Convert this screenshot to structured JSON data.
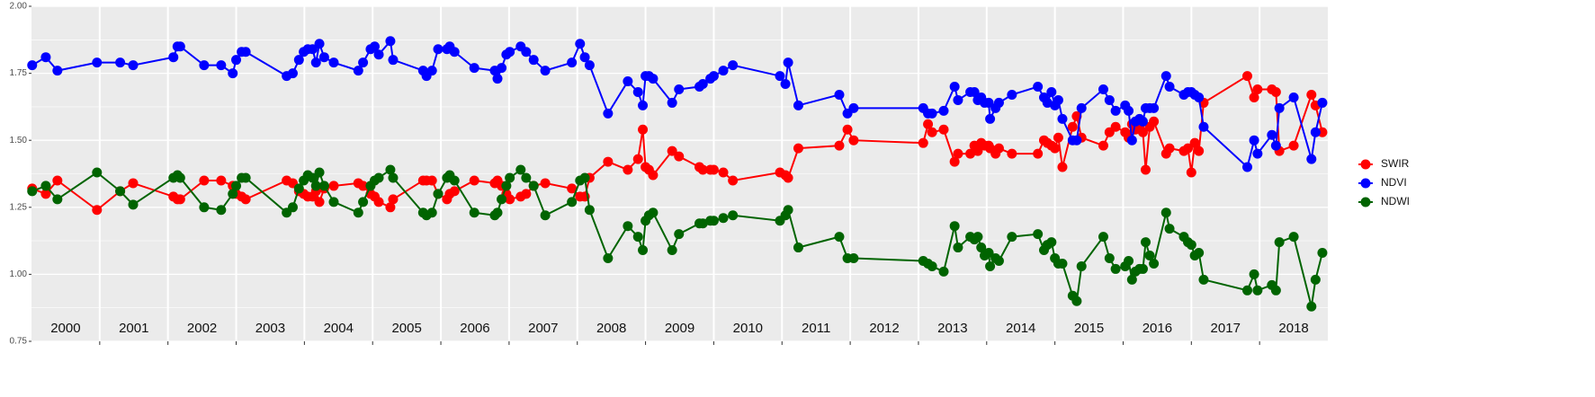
{
  "chart_data": {
    "type": "line",
    "x": [
      2000.01,
      2000.21,
      2000.38,
      2000.96,
      2001.3,
      2001.49,
      2002.08,
      2002.14,
      2002.18,
      2002.53,
      2002.78,
      2002.95,
      2003.0,
      2003.08,
      2003.14,
      2003.74,
      2003.83,
      2003.92,
      2003.99,
      2004.05,
      2004.12,
      2004.17,
      2004.22,
      2004.29,
      2004.43,
      2004.79,
      2004.86,
      2004.97,
      2005.03,
      2005.09,
      2005.26,
      2005.3,
      2005.74,
      2005.79,
      2005.87,
      2005.96,
      2006.09,
      2006.13,
      2006.2,
      2006.49,
      2006.79,
      2006.83,
      2006.89,
      2006.96,
      2007.01,
      2007.17,
      2007.25,
      2007.36,
      2007.53,
      2007.92,
      2008.04,
      2008.11,
      2008.18,
      2008.45,
      2008.74,
      2008.89,
      2008.96,
      2009.0,
      2009.05,
      2009.11,
      2009.39,
      2009.49,
      2009.79,
      2009.84,
      2009.95,
      2010.0,
      2010.14,
      2010.28,
      2010.97,
      2011.05,
      2011.09,
      2011.24,
      2011.84,
      2011.96,
      2012.05,
      2013.07,
      2013.14,
      2013.2,
      2013.37,
      2013.53,
      2013.58,
      2013.76,
      2013.82,
      2013.87,
      2013.92,
      2013.97,
      2014.03,
      2014.05,
      2014.13,
      2014.18,
      2014.37,
      2014.75,
      2014.84,
      2014.89,
      2014.95,
      2015.0,
      2015.05,
      2015.11,
      2015.26,
      2015.32,
      2015.39,
      2015.71,
      2015.8,
      2015.89,
      2016.03,
      2016.08,
      2016.13,
      2016.18,
      2016.24,
      2016.29,
      2016.33,
      2016.39,
      2016.45,
      2016.63,
      2016.68,
      2016.89,
      2016.95,
      2017.0,
      2017.05,
      2017.11,
      2017.18,
      2017.82,
      2017.92,
      2017.97,
      2018.18,
      2018.24,
      2018.29,
      2018.5,
      2018.76,
      2018.82,
      2018.92
    ],
    "series": [
      {
        "name": "SWIR",
        "color": "#ff0000",
        "values": [
          1.32,
          1.3,
          1.35,
          1.24,
          1.31,
          1.34,
          1.29,
          1.28,
          1.28,
          1.35,
          1.35,
          1.33,
          1.3,
          1.29,
          1.28,
          1.35,
          1.34,
          1.31,
          1.3,
          1.29,
          1.29,
          1.31,
          1.27,
          1.32,
          1.33,
          1.34,
          1.33,
          1.3,
          1.29,
          1.27,
          1.25,
          1.28,
          1.35,
          1.35,
          1.35,
          1.3,
          1.28,
          1.3,
          1.31,
          1.35,
          1.34,
          1.35,
          1.33,
          1.3,
          1.28,
          1.29,
          1.3,
          1.33,
          1.34,
          1.32,
          1.29,
          1.29,
          1.36,
          1.42,
          1.39,
          1.43,
          1.54,
          1.4,
          1.39,
          1.37,
          1.46,
          1.44,
          1.4,
          1.39,
          1.39,
          1.39,
          1.38,
          1.35,
          1.38,
          1.37,
          1.36,
          1.47,
          1.48,
          1.54,
          1.5,
          1.49,
          1.56,
          1.53,
          1.54,
          1.42,
          1.45,
          1.45,
          1.48,
          1.46,
          1.49,
          1.48,
          1.48,
          1.47,
          1.45,
          1.47,
          1.45,
          1.45,
          1.5,
          1.49,
          1.48,
          1.47,
          1.51,
          1.4,
          1.55,
          1.59,
          1.51,
          1.48,
          1.53,
          1.55,
          1.53,
          1.51,
          1.56,
          1.54,
          1.55,
          1.53,
          1.39,
          1.55,
          1.57,
          1.45,
          1.47,
          1.46,
          1.47,
          1.38,
          1.49,
          1.46,
          1.64,
          1.74,
          1.66,
          1.69,
          1.69,
          1.68,
          1.46,
          1.48,
          1.67,
          1.63,
          1.53
        ]
      },
      {
        "name": "NDVI",
        "color": "#0000ff",
        "values": [
          1.78,
          1.81,
          1.76,
          1.79,
          1.79,
          1.78,
          1.81,
          1.85,
          1.85,
          1.78,
          1.78,
          1.75,
          1.8,
          1.83,
          1.83,
          1.74,
          1.75,
          1.8,
          1.83,
          1.84,
          1.84,
          1.79,
          1.86,
          1.81,
          1.79,
          1.76,
          1.79,
          1.84,
          1.85,
          1.82,
          1.87,
          1.8,
          1.76,
          1.74,
          1.76,
          1.84,
          1.84,
          1.85,
          1.83,
          1.77,
          1.76,
          1.73,
          1.77,
          1.82,
          1.83,
          1.85,
          1.83,
          1.8,
          1.76,
          1.79,
          1.86,
          1.81,
          1.78,
          1.6,
          1.72,
          1.68,
          1.63,
          1.74,
          1.74,
          1.73,
          1.64,
          1.69,
          1.7,
          1.71,
          1.73,
          1.74,
          1.76,
          1.78,
          1.74,
          1.71,
          1.79,
          1.63,
          1.67,
          1.6,
          1.62,
          1.62,
          1.6,
          1.6,
          1.61,
          1.7,
          1.65,
          1.68,
          1.68,
          1.65,
          1.66,
          1.64,
          1.64,
          1.58,
          1.62,
          1.64,
          1.67,
          1.7,
          1.66,
          1.64,
          1.68,
          1.63,
          1.65,
          1.58,
          1.5,
          1.5,
          1.62,
          1.69,
          1.65,
          1.61,
          1.63,
          1.61,
          1.5,
          1.57,
          1.58,
          1.57,
          1.62,
          1.62,
          1.62,
          1.74,
          1.7,
          1.67,
          1.68,
          1.68,
          1.67,
          1.66,
          1.55,
          1.4,
          1.5,
          1.45,
          1.52,
          1.48,
          1.62,
          1.66,
          1.43,
          1.53,
          1.64
        ]
      },
      {
        "name": "NDWI",
        "color": "#006400",
        "values": [
          1.31,
          1.33,
          1.28,
          1.38,
          1.31,
          1.26,
          1.36,
          1.37,
          1.36,
          1.25,
          1.24,
          1.3,
          1.33,
          1.36,
          1.36,
          1.23,
          1.25,
          1.32,
          1.35,
          1.37,
          1.36,
          1.33,
          1.38,
          1.33,
          1.27,
          1.23,
          1.27,
          1.33,
          1.35,
          1.36,
          1.39,
          1.36,
          1.23,
          1.22,
          1.23,
          1.3,
          1.36,
          1.37,
          1.35,
          1.23,
          1.22,
          1.23,
          1.28,
          1.33,
          1.36,
          1.39,
          1.36,
          1.33,
          1.22,
          1.27,
          1.35,
          1.36,
          1.24,
          1.06,
          1.18,
          1.14,
          1.09,
          1.2,
          1.22,
          1.23,
          1.09,
          1.15,
          1.19,
          1.19,
          1.2,
          1.2,
          1.21,
          1.22,
          1.2,
          1.22,
          1.24,
          1.1,
          1.14,
          1.06,
          1.06,
          1.05,
          1.04,
          1.03,
          1.01,
          1.18,
          1.1,
          1.14,
          1.13,
          1.14,
          1.1,
          1.07,
          1.08,
          1.03,
          1.06,
          1.05,
          1.14,
          1.15,
          1.09,
          1.11,
          1.12,
          1.06,
          1.04,
          1.04,
          0.92,
          0.9,
          1.03,
          1.14,
          1.06,
          1.02,
          1.03,
          1.05,
          0.98,
          1.01,
          1.02,
          1.02,
          1.12,
          1.07,
          1.04,
          1.23,
          1.17,
          1.14,
          1.12,
          1.11,
          1.07,
          1.08,
          0.98,
          0.94,
          1.0,
          0.94,
          0.96,
          0.94,
          1.12,
          1.14,
          0.88,
          0.98,
          1.08
        ]
      }
    ],
    "xlim": [
      2000,
      2019
    ],
    "xticks": [
      {
        "value": 2000.5,
        "label": "2000"
      },
      {
        "value": 2001.5,
        "label": "2001"
      },
      {
        "value": 2002.5,
        "label": "2002"
      },
      {
        "value": 2003.5,
        "label": "2003"
      },
      {
        "value": 2004.5,
        "label": "2004"
      },
      {
        "value": 2005.5,
        "label": "2005"
      },
      {
        "value": 2006.5,
        "label": "2006"
      },
      {
        "value": 2007.5,
        "label": "2007"
      },
      {
        "value": 2008.5,
        "label": "2008"
      },
      {
        "value": 2009.5,
        "label": "2009"
      },
      {
        "value": 2010.5,
        "label": "2010"
      },
      {
        "value": 2011.5,
        "label": "2011"
      },
      {
        "value": 2012.5,
        "label": "2012"
      },
      {
        "value": 2013.5,
        "label": "2013"
      },
      {
        "value": 2014.5,
        "label": "2014"
      },
      {
        "value": 2015.5,
        "label": "2015"
      },
      {
        "value": 2016.5,
        "label": "2016"
      },
      {
        "value": 2017.5,
        "label": "2017"
      },
      {
        "value": 2018.5,
        "label": "2018"
      }
    ],
    "ylim": [
      0.75,
      2.0
    ],
    "yticks": [
      {
        "value": 0.75,
        "label": "0.75"
      },
      {
        "value": 1.0,
        "label": "1.00"
      },
      {
        "value": 1.25,
        "label": "1.25"
      },
      {
        "value": 1.5,
        "label": "1.50"
      },
      {
        "value": 1.75,
        "label": "1.75"
      },
      {
        "value": 2.0,
        "label": "2.00"
      }
    ],
    "grid": true,
    "legend": "right"
  }
}
